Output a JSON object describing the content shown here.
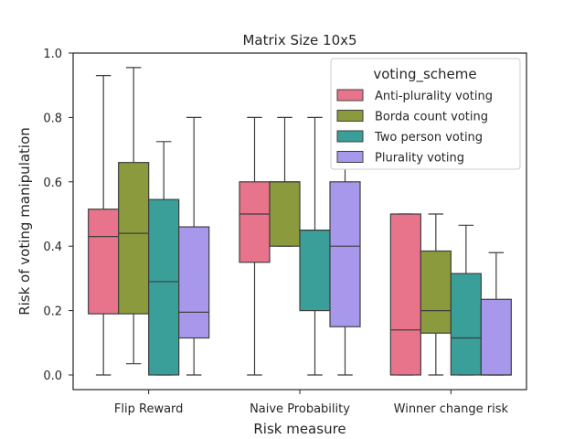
{
  "chart_data": {
    "type": "box",
    "title": "Matrix Size 10x5",
    "xlabel": "Risk measure",
    "ylabel": "Risk of voting manipulation",
    "ylim": [
      0.0,
      1.0
    ],
    "yticks": [
      "0.0",
      "0.2",
      "0.4",
      "0.6",
      "0.8",
      "1.0"
    ],
    "categories": [
      "Flip Reward",
      "Naive Probability",
      "Winner change risk"
    ],
    "legend": {
      "title": "voting_scheme",
      "position": "top-right"
    },
    "grid": false,
    "series": [
      {
        "name": "Anti-plurality voting",
        "color": "#e8748b",
        "boxes": [
          {
            "min": 0.0,
            "q1": 0.19,
            "median": 0.43,
            "q3": 0.515,
            "max": 0.93
          },
          {
            "min": 0.0,
            "q1": 0.35,
            "median": 0.5,
            "q3": 0.6,
            "max": 0.8
          },
          {
            "min": 0.0,
            "q1": 0.0,
            "median": 0.14,
            "q3": 0.5,
            "max": 0.5
          }
        ]
      },
      {
        "name": "Borda count voting",
        "color": "#8a9a3c",
        "boxes": [
          {
            "min": 0.035,
            "q1": 0.19,
            "median": 0.44,
            "q3": 0.66,
            "max": 0.955
          },
          {
            "min": 0.4,
            "q1": 0.4,
            "median": 0.6,
            "q3": 0.6,
            "max": 0.8
          },
          {
            "min": 0.0,
            "q1": 0.13,
            "median": 0.2,
            "q3": 0.385,
            "max": 0.5
          }
        ]
      },
      {
        "name": "Two person voting",
        "color": "#3a9f98",
        "boxes": [
          {
            "min": 0.0,
            "q1": 0.0,
            "median": 0.29,
            "q3": 0.545,
            "max": 0.725
          },
          {
            "min": 0.0,
            "q1": 0.2,
            "median": 0.45,
            "q3": 0.45,
            "max": 0.8
          },
          {
            "min": 0.0,
            "q1": 0.0,
            "median": 0.115,
            "q3": 0.315,
            "max": 0.465
          }
        ]
      },
      {
        "name": "Plurality voting",
        "color": "#a898ec",
        "boxes": [
          {
            "min": 0.0,
            "q1": 0.115,
            "median": 0.195,
            "q3": 0.46,
            "max": 0.8
          },
          {
            "min": 0.0,
            "q1": 0.15,
            "median": 0.4,
            "q3": 0.6,
            "max": 0.8
          },
          {
            "min": 0.0,
            "q1": 0.0,
            "median": 0.0,
            "q3": 0.235,
            "max": 0.38
          }
        ]
      }
    ]
  }
}
